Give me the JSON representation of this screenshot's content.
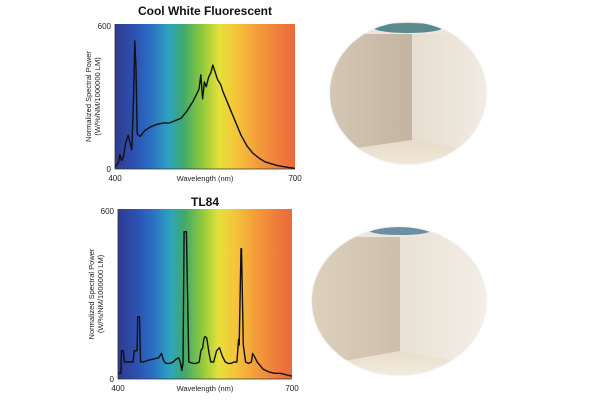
{
  "chart_data": [
    {
      "type": "line",
      "title": "Cool White Fluorescent",
      "xlabel": "Wavelength (nm)",
      "ylabel": "Normalized Spectral Power",
      "ylabel2": "(W/%/NM/1000000 LM)",
      "xlim": [
        400,
        700
      ],
      "ylim": [
        0,
        600
      ],
      "x_ticks": [
        "400",
        "700"
      ],
      "y_ticks": [
        "0",
        "600"
      ],
      "background": "visible spectrum gradient",
      "series": [
        {
          "x": [
            400,
            406,
            408,
            411,
            414,
            418,
            422,
            428,
            431,
            433,
            435,
            437,
            442,
            450,
            460,
            470,
            480,
            490,
            500,
            510,
            520,
            530,
            540,
            543,
            546,
            549,
            552,
            556,
            560,
            563,
            567,
            571,
            576,
            580,
            590,
            600,
            610,
            620,
            630,
            640,
            650,
            660,
            670,
            680,
            690,
            700
          ],
          "y": [
            5,
            30,
            60,
            35,
            50,
            110,
            140,
            80,
            300,
            530,
            420,
            145,
            135,
            160,
            175,
            185,
            190,
            190,
            200,
            210,
            240,
            280,
            330,
            390,
            290,
            360,
            340,
            380,
            400,
            430,
            400,
            370,
            350,
            320,
            260,
            200,
            140,
            95,
            65,
            45,
            30,
            22,
            15,
            10,
            6,
            3
          ]
        }
      ]
    },
    {
      "type": "line",
      "title": "TL84",
      "xlabel": "Wavelength (nm)",
      "ylabel": "Normalized Spectral Power",
      "ylabel2": "(W/%/NM/1000000 LM)",
      "xlim": [
        400,
        700
      ],
      "ylim": [
        0,
        600
      ],
      "x_ticks": [
        "400",
        "700"
      ],
      "y_ticks": [
        "0",
        "600"
      ],
      "background": "visible spectrum gradient",
      "series": [
        {
          "x": [
            400,
            405,
            406,
            409,
            411,
            414,
            426,
            428,
            433,
            434,
            437,
            439,
            444,
            450,
            460,
            470,
            475,
            478,
            480,
            483,
            486,
            490,
            495,
            500,
            505,
            508,
            510,
            512,
            514,
            518,
            522,
            530,
            535,
            540,
            543,
            546,
            548,
            550,
            553,
            557,
            560,
            565,
            570,
            575,
            580,
            585,
            590,
            595,
            600,
            605,
            608,
            609,
            612,
            613,
            616,
            620,
            625,
            630,
            632,
            635,
            640,
            650,
            660,
            670,
            680,
            690,
            700
          ],
          "y": [
            20,
            20,
            100,
            100,
            60,
            60,
            60,
            100,
            100,
            220,
            220,
            60,
            60,
            65,
            70,
            75,
            90,
            70,
            60,
            55,
            55,
            55,
            60,
            70,
            75,
            55,
            30,
            55,
            520,
            520,
            60,
            55,
            55,
            60,
            100,
            110,
            140,
            150,
            145,
            90,
            60,
            60,
            100,
            110,
            80,
            60,
            55,
            55,
            60,
            60,
            140,
            120,
            460,
            460,
            120,
            60,
            55,
            60,
            90,
            80,
            60,
            35,
            25,
            20,
            20,
            15,
            10
          ]
        }
      ]
    }
  ]
}
